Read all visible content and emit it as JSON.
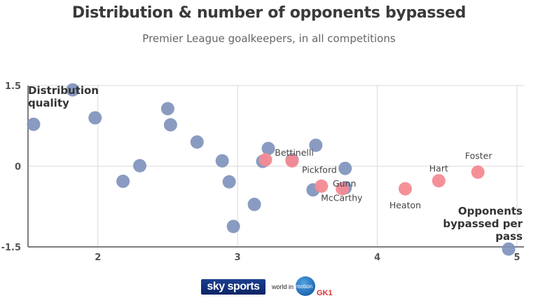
{
  "title": "Distribution & number of opponents bypassed",
  "subtitle": "Premier League goalkeepers, in all competitions",
  "chart_data": {
    "type": "scatter",
    "xlim": [
      1.5,
      5.05
    ],
    "ylim": [
      -1.5,
      1.5
    ],
    "x_ticks": [
      "2",
      "3",
      "4",
      "5"
    ],
    "x_tick_values": [
      2,
      3,
      4,
      5
    ],
    "y_ticks": [
      "1.5",
      "0",
      "-1.5"
    ],
    "y_tick_values": [
      1.5,
      0,
      -1.5
    ],
    "xlabel": "Opponents bypassed per pass",
    "ylabel": "Distribution quality",
    "grid": true,
    "colors": {
      "others": "#7f93bc",
      "highlight": "#f48a94"
    },
    "series": [
      {
        "points": [
          {
            "x": 1.54,
            "y": 0.78
          },
          {
            "x": 1.82,
            "y": 1.42
          },
          {
            "x": 1.98,
            "y": 0.9
          },
          {
            "x": 2.18,
            "y": -0.28
          },
          {
            "x": 2.3,
            "y": 0.01
          },
          {
            "x": 2.5,
            "y": 1.07
          },
          {
            "x": 2.52,
            "y": 0.77
          },
          {
            "x": 2.71,
            "y": 0.45
          },
          {
            "x": 2.89,
            "y": 0.1
          },
          {
            "x": 2.94,
            "y": -0.29
          },
          {
            "x": 2.97,
            "y": -1.12
          },
          {
            "x": 3.12,
            "y": -0.71
          },
          {
            "x": 3.18,
            "y": 0.09
          },
          {
            "x": 3.22,
            "y": 0.33
          },
          {
            "x": 3.39,
            "y": 0.12
          },
          {
            "x": 3.54,
            "y": -0.44
          },
          {
            "x": 3.56,
            "y": 0.39
          },
          {
            "x": 3.77,
            "y": -0.04
          },
          {
            "x": 3.77,
            "y": -0.4
          },
          {
            "x": 4.94,
            "y": -1.54
          }
        ]
      },
      {
        "points": [
          {
            "x": 3.2,
            "y": 0.12,
            "label": "Bettinelli"
          },
          {
            "x": 3.39,
            "y": 0.1,
            "label": "Pickford"
          },
          {
            "x": 3.6,
            "y": -0.37,
            "label": "McCarthy"
          },
          {
            "x": 3.75,
            "y": -0.42,
            "label": "Gunn"
          },
          {
            "x": 4.2,
            "y": -0.42,
            "label": "Heaton"
          },
          {
            "x": 4.44,
            "y": -0.27,
            "label": "Hart"
          },
          {
            "x": 4.72,
            "y": -0.11,
            "label": "Foster"
          }
        ]
      }
    ]
  },
  "footer": {
    "sky_logo": "sky sports",
    "world_label": "world in",
    "motion_label": "motion",
    "gk1_label": "GK1"
  }
}
